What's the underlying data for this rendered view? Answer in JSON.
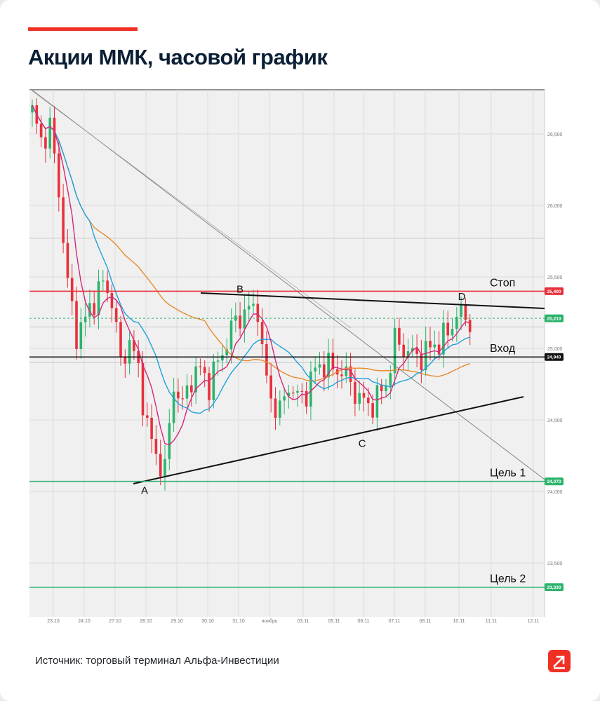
{
  "header": {
    "title": "Акции ММК, часовой график"
  },
  "footer": {
    "source": "Источник: торговый терминал Альфа-Инвестиции"
  },
  "brand": {
    "logo_icon": "alfa-arrow-logo-icon",
    "accent_color": "#ef3124"
  },
  "chart_data": {
    "type": "candlestick",
    "ylim": [
      23.3,
      26.8
    ],
    "y_ticks": [
      "26,500",
      "26,000",
      "25,500",
      "25,000",
      "24,500",
      "24,000",
      "23,500"
    ],
    "x_ticks": [
      "23.10",
      "24.10",
      "27.10",
      "28.10",
      "29.10",
      "30.10",
      "31.10",
      "ноябрь",
      "03.11",
      "05.11",
      "06.11",
      "07.11",
      "08.11",
      "10.11",
      "11.11",
      "12.11"
    ],
    "grid": true,
    "colors": {
      "up": "#2db36d",
      "down": "#e8303a",
      "ma_fast": "#d6267a",
      "ma_mid": "#1fa1dc",
      "ma_slow": "#e88a2a"
    },
    "levels": [
      {
        "name": "Стоп",
        "label": "Стоп",
        "value": 25.4,
        "price_label": "25,400",
        "color": "#e8303a"
      },
      {
        "name": "current",
        "label": "",
        "value": 25.21,
        "price_label": "25,210",
        "color": "#2db36d",
        "dashed": true
      },
      {
        "name": "Вход",
        "label": "Вход",
        "value": 24.94,
        "price_label": "24,940",
        "color": "#111111"
      },
      {
        "name": "Цель 1",
        "label": "Цель 1",
        "value": 24.07,
        "price_label": "24,070",
        "color": "#2db36d"
      },
      {
        "name": "Цель 2",
        "label": "Цель 2",
        "value": 23.33,
        "price_label": "23,330",
        "color": "#2db36d"
      }
    ],
    "points": [
      {
        "label": "A",
        "x": "28.10",
        "y": 24.08
      },
      {
        "label": "B",
        "x": "31.10",
        "y": 25.35
      },
      {
        "label": "C",
        "x": "06.11",
        "y": 24.41
      },
      {
        "label": "D",
        "x": "10.11",
        "y": 25.3
      }
    ],
    "price_path": [
      [
        0,
        26.65
      ],
      [
        2,
        26.45
      ],
      [
        4,
        26.55
      ],
      [
        6,
        26.1
      ],
      [
        8,
        25.45
      ],
      [
        10,
        25.1
      ],
      [
        12,
        25.2
      ],
      [
        14,
        25.35
      ],
      [
        16,
        25.45
      ],
      [
        18,
        25.35
      ],
      [
        20,
        24.9
      ],
      [
        22,
        25.05
      ],
      [
        24,
        24.85
      ],
      [
        26,
        24.45
      ],
      [
        28,
        24.25
      ],
      [
        30,
        24.15
      ],
      [
        32,
        24.75
      ],
      [
        34,
        24.6
      ],
      [
        36,
        24.8
      ],
      [
        38,
        24.85
      ],
      [
        40,
        24.75
      ],
      [
        42,
        24.9
      ],
      [
        44,
        25.05
      ],
      [
        46,
        25.2
      ],
      [
        48,
        25.25
      ],
      [
        50,
        25.28
      ],
      [
        51,
        25.3
      ],
      [
        52,
        24.95
      ],
      [
        54,
        24.65
      ],
      [
        56,
        24.55
      ],
      [
        58,
        24.75
      ],
      [
        60,
        24.65
      ],
      [
        62,
        24.7
      ],
      [
        64,
        24.85
      ],
      [
        66,
        24.9
      ],
      [
        68,
        24.85
      ],
      [
        70,
        24.85
      ],
      [
        72,
        24.75
      ],
      [
        74,
        24.65
      ],
      [
        76,
        24.6
      ],
      [
        78,
        24.65
      ],
      [
        80,
        24.75
      ],
      [
        82,
        25.05
      ],
      [
        84,
        25.0
      ],
      [
        86,
        24.95
      ],
      [
        88,
        24.95
      ],
      [
        90,
        25.0
      ],
      [
        92,
        25.05
      ],
      [
        94,
        25.1
      ],
      [
        96,
        25.25
      ],
      [
        98,
        25.2
      ]
    ]
  }
}
